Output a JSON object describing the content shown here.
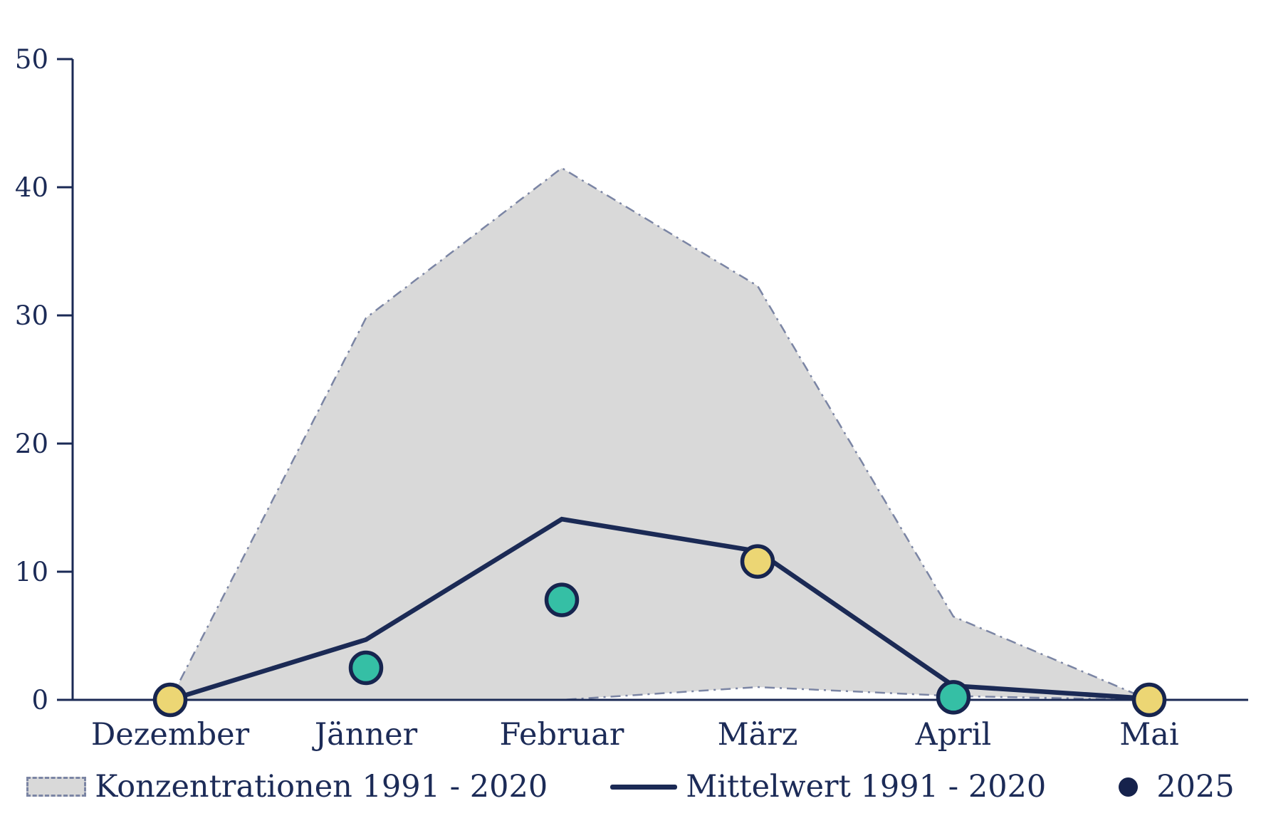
{
  "chart_data": {
    "type": "line",
    "title": "",
    "xlabel": "",
    "ylabel": "",
    "categories": [
      "Dezember",
      "Jänner",
      "Februar",
      "März",
      "April",
      "Mai"
    ],
    "ylim": [
      0,
      50
    ],
    "yticks": [
      0,
      10,
      20,
      30,
      40,
      50
    ],
    "grid": false,
    "legend_position": "bottom",
    "series": [
      {
        "name": "Konzentrationen 1991 - 2020",
        "type": "band",
        "max": [
          0,
          29.8,
          41.5,
          32.3,
          6.5,
          0
        ],
        "min": [
          0,
          0,
          0,
          1,
          0.3,
          0
        ],
        "fill": "#d9d9d9",
        "border_color": "#7b85a4",
        "border_style": "dash-dot"
      },
      {
        "name": "Mittelwert 1991 - 2020",
        "type": "line",
        "values": [
          0,
          4.7,
          14.1,
          11.6,
          1.1,
          0.1
        ],
        "color": "#1b2a55"
      },
      {
        "name": "2025",
        "type": "scatter",
        "values": [
          0,
          2.5,
          7.8,
          10.8,
          0.2,
          0
        ],
        "legend_marker_color": "#16224c",
        "point_colors": [
          "#ecd674",
          "#35bfa5",
          "#35bfa5",
          "#ecd674",
          "#35bfa5",
          "#ecd674"
        ],
        "point_border_color": "#17254f"
      }
    ]
  },
  "colors": {
    "axis": "#1b2a55",
    "text": "#1c2b57",
    "background": "#ffffff"
  }
}
